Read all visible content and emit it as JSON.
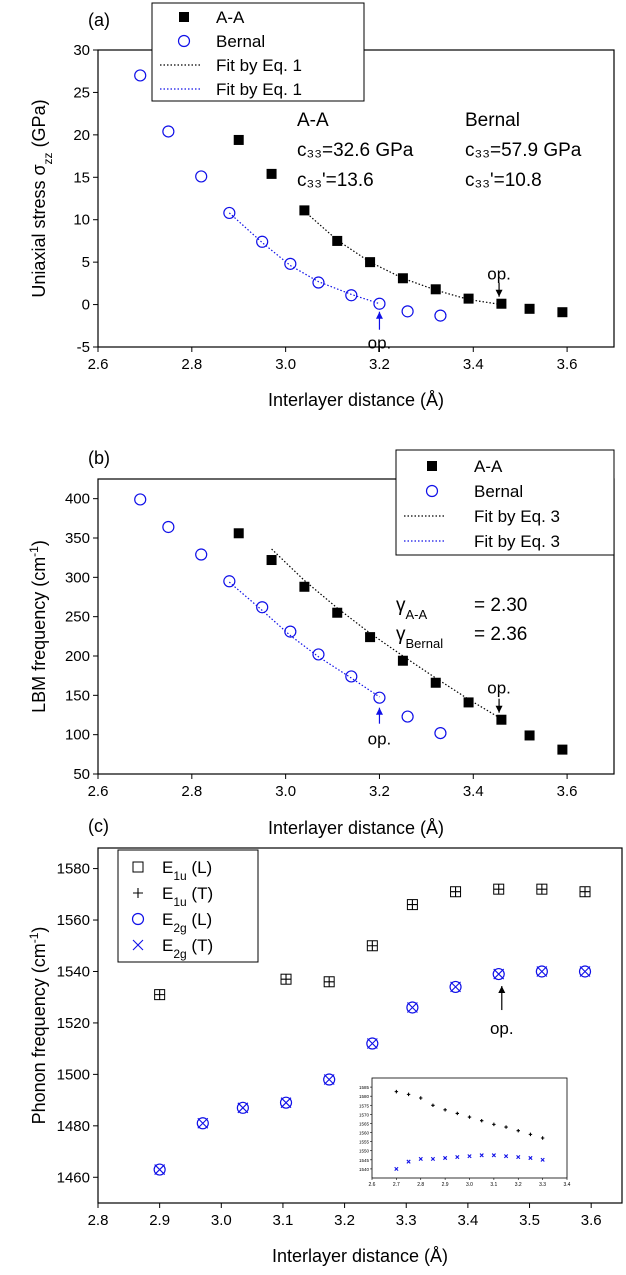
{
  "colors": {
    "aa": "#000000",
    "bernal": "#1010e8",
    "axis": "#000000"
  },
  "chart_data": [
    {
      "panel_label": "(a)",
      "type": "scatter",
      "xlabel": "Interlayer distance (Å)",
      "ylabel": "Uniaxial stress σ",
      "ylabel_sub": "zz",
      "ylabel_unit": " (GPa)",
      "xlim": [
        2.6,
        3.7
      ],
      "ylim": [
        -5,
        30
      ],
      "xticks": [
        "2.6",
        "2.8",
        "3.0",
        "3.2",
        "3.4",
        "3.6"
      ],
      "yticks": [
        "-5",
        "0",
        "5",
        "10",
        "15",
        "20",
        "25",
        "30"
      ],
      "legend": {
        "placement": "top-left",
        "entries": [
          "A-A",
          "Bernal",
          "Fit by Eq. 1",
          "Fit by Eq. 1"
        ]
      },
      "series": [
        {
          "name": "A-A",
          "marker": "filled-square",
          "x": [
            2.9,
            2.97,
            3.04,
            3.11,
            3.18,
            3.25,
            3.32,
            3.39,
            3.46,
            3.52,
            3.59
          ],
          "y": [
            19.4,
            15.4,
            11.1,
            7.5,
            5.0,
            3.1,
            1.8,
            0.7,
            0.1,
            -0.5,
            -0.9
          ]
        },
        {
          "name": "Bernal",
          "marker": "open-circle",
          "x": [
            2.69,
            2.75,
            2.82,
            2.88,
            2.95,
            3.01,
            3.07,
            3.14,
            3.2,
            3.26,
            3.33
          ],
          "y": [
            27.0,
            20.4,
            15.1,
            10.8,
            7.4,
            4.8,
            2.6,
            1.1,
            0.1,
            -0.8,
            -1.3
          ]
        },
        {
          "name": "Fit by Eq. 1",
          "style": "dotted",
          "color_key": "aa",
          "x": [
            3.04,
            3.11,
            3.18,
            3.25,
            3.32,
            3.39,
            3.46
          ],
          "y": [
            11.0,
            7.6,
            5.0,
            3.1,
            1.7,
            0.6,
            0.0
          ]
        },
        {
          "name": "Fit by Eq. 1",
          "style": "dotted",
          "color_key": "bernal",
          "x": [
            2.88,
            2.95,
            3.01,
            3.07,
            3.14,
            3.2
          ],
          "y": [
            10.8,
            7.3,
            4.6,
            2.7,
            1.2,
            0.1
          ]
        }
      ],
      "annotations": [
        {
          "id": "aa_block",
          "lines": [
            "A-A",
            "c₃₃=32.6 GPa",
            "c₃₃'=13.6"
          ]
        },
        {
          "id": "bernal_block",
          "lines": [
            "Bernal",
            "c₃₃=57.9 GPa",
            "c₃₃'=10.8"
          ]
        },
        {
          "id": "op_aa",
          "text": "op.",
          "x": 3.455,
          "y": 0.1,
          "color_key": "aa"
        },
        {
          "id": "op_bernal",
          "text": "op.",
          "x": 3.2,
          "y": 0.1,
          "color_key": "bernal"
        }
      ]
    },
    {
      "panel_label": "(b)",
      "type": "scatter",
      "xlabel": "Interlayer distance (Å)",
      "ylabel": "LBM frequency (cm",
      "ylabel_sup": "-1",
      "ylabel_unit": ")",
      "xlim": [
        2.6,
        3.7
      ],
      "ylim": [
        50,
        425
      ],
      "xticks": [
        "2.6",
        "2.8",
        "3.0",
        "3.2",
        "3.4",
        "3.6"
      ],
      "yticks": [
        "50",
        "100",
        "150",
        "200",
        "250",
        "300",
        "350",
        "400"
      ],
      "legend": {
        "placement": "top-right",
        "entries": [
          "A-A",
          "Bernal",
          "Fit by Eq. 3",
          "Fit by Eq. 3"
        ]
      },
      "series": [
        {
          "name": "A-A",
          "marker": "filled-square",
          "x": [
            2.9,
            2.97,
            3.04,
            3.11,
            3.18,
            3.25,
            3.32,
            3.39,
            3.46,
            3.52,
            3.59
          ],
          "y": [
            356,
            322,
            288,
            255,
            224,
            194,
            166,
            141,
            119,
            99,
            81
          ]
        },
        {
          "name": "Bernal",
          "marker": "open-circle",
          "x": [
            2.69,
            2.75,
            2.82,
            2.88,
            2.95,
            3.01,
            3.07,
            3.14,
            3.2,
            3.26,
            3.33
          ],
          "y": [
            399,
            364,
            329,
            295,
            262,
            231,
            202,
            174,
            147,
            123,
            102
          ]
        },
        {
          "name": "Fit by Eq. 3",
          "style": "dotted",
          "color_key": "aa",
          "x": [
            2.97,
            3.04,
            3.11,
            3.18,
            3.25,
            3.32,
            3.39,
            3.46
          ],
          "y": [
            336,
            296,
            261,
            229,
            200,
            172,
            145,
            120
          ]
        },
        {
          "name": "Fit by Eq. 3",
          "style": "dotted",
          "color_key": "bernal",
          "x": [
            2.88,
            2.95,
            3.01,
            3.07,
            3.14,
            3.2
          ],
          "y": [
            294,
            258,
            226,
            199,
            172,
            148
          ]
        }
      ],
      "annotations": [
        {
          "id": "gamma_aa",
          "symbol": "γ",
          "sub": "A-A",
          "value": "= 2.30"
        },
        {
          "id": "gamma_bernal",
          "symbol": "γ",
          "sub": "Bernal",
          "value": "= 2.36"
        },
        {
          "id": "op_aa",
          "text": "op.",
          "x": 3.455,
          "y": 119,
          "color_key": "aa"
        },
        {
          "id": "op_bernal",
          "text": "op.",
          "x": 3.2,
          "y": 147,
          "color_key": "bernal"
        }
      ]
    },
    {
      "panel_label": "(c)",
      "type": "scatter",
      "xlabel": "Interlayer distance (Å)",
      "ylabel": "Phonon frequency (cm",
      "ylabel_sup": "-1",
      "ylabel_unit": ")",
      "xlim": [
        2.8,
        3.65
      ],
      "ylim": [
        1450,
        1588
      ],
      "xticks": [
        "2.8",
        "2.9",
        "3.0",
        "3.1",
        "3.2",
        "3.3",
        "3.4",
        "3.5",
        "3.6"
      ],
      "yticks": [
        "1460",
        "1480",
        "1500",
        "1520",
        "1540",
        "1560",
        "1580"
      ],
      "legend": {
        "placement": "top-left",
        "entries": [
          {
            "base": "E",
            "sub": "1u",
            "suffix": " (L)",
            "marker": "open-square"
          },
          {
            "base": "E",
            "sub": "1u",
            "suffix": " (T)",
            "marker": "plus"
          },
          {
            "base": "E",
            "sub": "2g",
            "suffix": " (L)",
            "marker": "open-circle"
          },
          {
            "base": "E",
            "sub": "2g",
            "suffix": " (T)",
            "marker": "cross"
          }
        ]
      },
      "series": [
        {
          "name": "E1u (L)",
          "marker": "open-square",
          "color_key": "aa",
          "x": [
            2.9,
            3.105,
            3.175,
            3.245,
            3.31,
            3.38,
            3.45,
            3.52,
            3.59
          ],
          "y": [
            1531,
            1537,
            1536,
            1550,
            1566,
            1571,
            1572,
            1572,
            1571
          ]
        },
        {
          "name": "E1u (T)",
          "marker": "plus",
          "color_key": "aa",
          "x": [
            2.9,
            3.105,
            3.175,
            3.245,
            3.31,
            3.38,
            3.45,
            3.52,
            3.59
          ],
          "y": [
            1531,
            1537,
            1536,
            1550,
            1566,
            1571,
            1572,
            1572,
            1571
          ]
        },
        {
          "name": "E2g (L)",
          "marker": "open-circle",
          "color_key": "bernal",
          "x": [
            2.9,
            2.97,
            3.035,
            3.105,
            3.175,
            3.245,
            3.31,
            3.38,
            3.45,
            3.52,
            3.59
          ],
          "y": [
            1463,
            1481,
            1487,
            1489,
            1498,
            1512,
            1526,
            1534,
            1539,
            1540,
            1540
          ]
        },
        {
          "name": "E2g (T)",
          "marker": "cross",
          "color_key": "bernal",
          "x": [
            2.9,
            2.97,
            3.035,
            3.105,
            3.175,
            3.245,
            3.31,
            3.38,
            3.45,
            3.52,
            3.59
          ],
          "y": [
            1463,
            1481,
            1487,
            1489,
            1498,
            1512,
            1526,
            1534,
            1539,
            1540,
            1540
          ]
        }
      ],
      "annotations": [
        {
          "id": "op",
          "text": "op.",
          "x": 3.455,
          "y": 1539,
          "color_key": "aa"
        }
      ],
      "inset": {
        "xlim": [
          2.6,
          3.4
        ],
        "ylim": [
          1535,
          1590
        ],
        "xticks": [
          "2.6",
          "2.7",
          "2.8",
          "2.9",
          "3.0",
          "3.1",
          "3.2",
          "3.3",
          "3.4"
        ],
        "yticks": [
          "1540",
          "1545",
          "1550",
          "1555",
          "1560",
          "1565",
          "1570",
          "1575",
          "1580",
          "1585"
        ],
        "series": [
          {
            "name": "E1u",
            "marker": "plus",
            "color_key": "aa",
            "x": [
              2.7,
              2.75,
              2.8,
              2.85,
              2.9,
              2.95,
              3.0,
              3.05,
              3.1,
              3.15,
              3.2,
              3.25,
              3.3
            ],
            "y": [
              1582.5,
              1581,
              1579,
              1575,
              1572.5,
              1570.5,
              1568.5,
              1566.5,
              1564.5,
              1563,
              1561,
              1559,
              1557
            ]
          },
          {
            "name": "E2g",
            "marker": "cross",
            "color_key": "bernal",
            "x": [
              2.7,
              2.75,
              2.8,
              2.85,
              2.9,
              2.95,
              3.0,
              3.05,
              3.1,
              3.15,
              3.2,
              3.25,
              3.3
            ],
            "y": [
              1540,
              1544,
              1545.5,
              1545.5,
              1546,
              1546.5,
              1547,
              1547.5,
              1547.5,
              1547,
              1546.5,
              1546,
              1545
            ]
          }
        ]
      }
    }
  ]
}
